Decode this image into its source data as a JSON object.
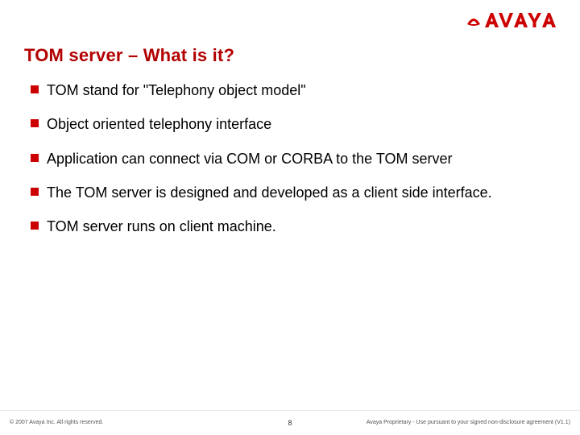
{
  "brand": {
    "name": "AVAYA",
    "color": "#cc0000"
  },
  "title": {
    "text": "TOM server – What is it?",
    "color": "#b30000",
    "font_size": 22
  },
  "bullets": {
    "bullet_color": "#cc0000",
    "text_color": "#000000",
    "font_size": 18,
    "items": [
      {
        "text": "TOM stand for \"Telephony object model\""
      },
      {
        "text": "Object oriented telephony interface"
      },
      {
        "text": "Application can connect via COM or CORBA to the TOM server"
      },
      {
        "text": "The TOM server is designed and developed as a client side interface."
      },
      {
        "text": "TOM server runs on client machine."
      }
    ]
  },
  "footer": {
    "left": "© 2007 Avaya Inc. All rights reserved.",
    "page": "8",
    "right": "Avaya Proprietary - Use pursuant to your signed non-disclosure agreement (V1.1)"
  },
  "background_color": "#ffffff"
}
